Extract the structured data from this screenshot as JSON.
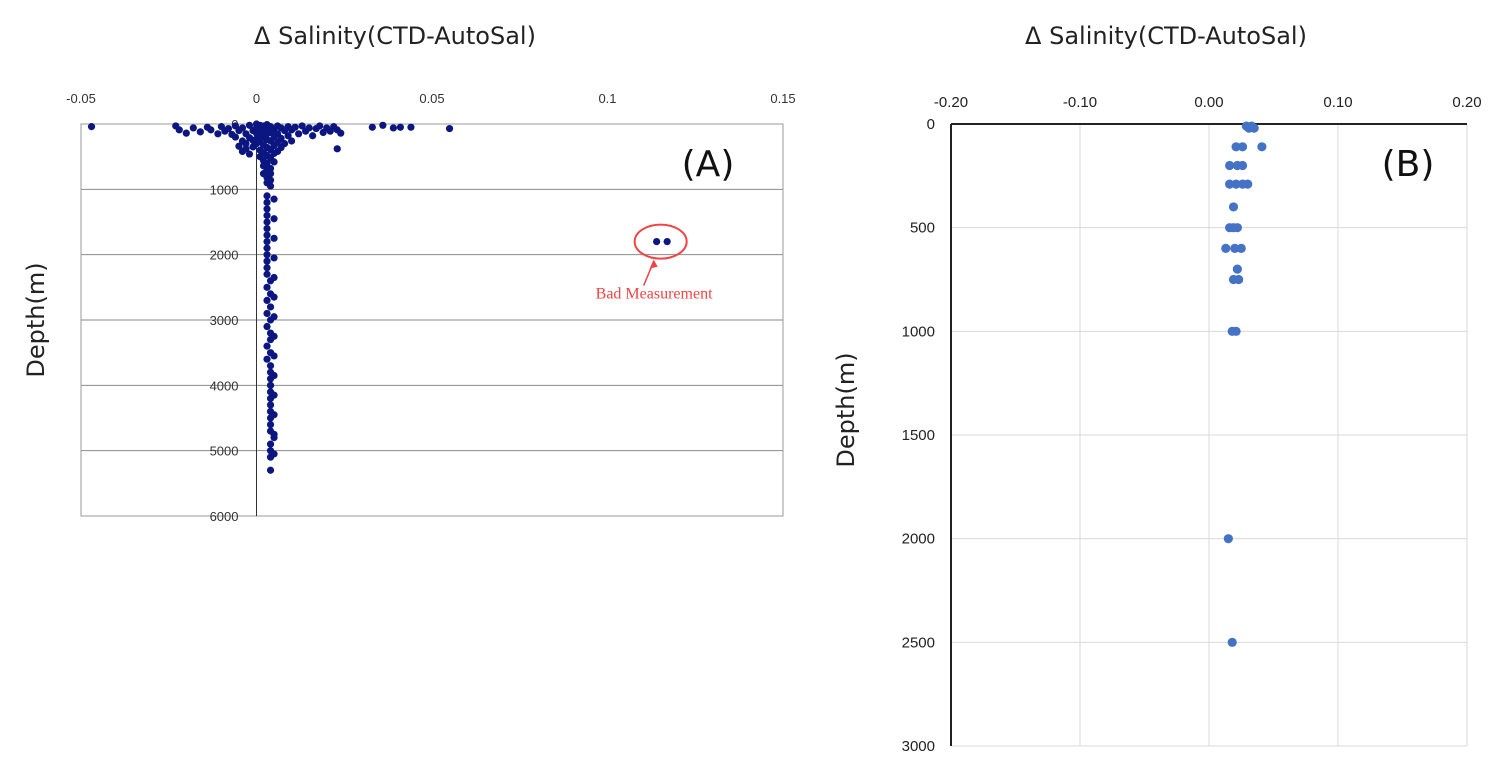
{
  "chart_data": [
    {
      "type": "scatter",
      "panel_label": "(A)",
      "title": "Δ Salinity(CTD-AutoSal)",
      "xlabel": "Δ Salinity(CTD-AutoSal)",
      "ylabel": "Depth(m)",
      "xlim": [
        -0.05,
        0.15
      ],
      "ylim": [
        0,
        6000
      ],
      "y_inverted": true,
      "x_ticks": [
        "-0.05",
        "0",
        "0.05",
        "0.1",
        "0.15"
      ],
      "y_ticks": [
        "0",
        "1000",
        "2000",
        "3000",
        "4000",
        "5000",
        "6000"
      ],
      "grid": "horizontal",
      "marker_color": "#0b1680",
      "annotation": {
        "text": "Bad Measurement",
        "color": "#ee4444",
        "target": [
          0.116,
          1800
        ]
      },
      "points": [
        [
          -0.047,
          40
        ],
        [
          -0.023,
          30
        ],
        [
          -0.022,
          90
        ],
        [
          -0.02,
          140
        ],
        [
          -0.018,
          60
        ],
        [
          -0.016,
          120
        ],
        [
          -0.014,
          50
        ],
        [
          -0.013,
          90
        ],
        [
          -0.011,
          150
        ],
        [
          -0.01,
          40
        ],
        [
          -0.009,
          110
        ],
        [
          -0.008,
          70
        ],
        [
          -0.007,
          160
        ],
        [
          -0.006,
          30
        ],
        [
          -0.006,
          200
        ],
        [
          -0.005,
          100
        ],
        [
          -0.005,
          340
        ],
        [
          -0.004,
          60
        ],
        [
          -0.004,
          260
        ],
        [
          -0.004,
          420
        ],
        [
          -0.003,
          150
        ],
        [
          -0.003,
          300
        ],
        [
          -0.003,
          380
        ],
        [
          -0.002,
          20
        ],
        [
          -0.002,
          210
        ],
        [
          -0.002,
          460
        ],
        [
          -0.001,
          100
        ],
        [
          -0.001,
          250
        ],
        [
          -0.001,
          350
        ],
        [
          0,
          0
        ],
        [
          0,
          60
        ],
        [
          0,
          140
        ],
        [
          0,
          230
        ],
        [
          0,
          300
        ],
        [
          0.001,
          20
        ],
        [
          0.001,
          90
        ],
        [
          0.001,
          180
        ],
        [
          0.001,
          270
        ],
        [
          0.001,
          400
        ],
        [
          0.001,
          500
        ],
        [
          0.002,
          30
        ],
        [
          0.002,
          110
        ],
        [
          0.002,
          200
        ],
        [
          0.002,
          320
        ],
        [
          0.002,
          440
        ],
        [
          0.002,
          560
        ],
        [
          0.002,
          640
        ],
        [
          0.002,
          760
        ],
        [
          0.003,
          10
        ],
        [
          0.003,
          60
        ],
        [
          0.003,
          150
        ],
        [
          0.003,
          240
        ],
        [
          0.003,
          360
        ],
        [
          0.003,
          480
        ],
        [
          0.003,
          600
        ],
        [
          0.003,
          700
        ],
        [
          0.003,
          820
        ],
        [
          0.003,
          900
        ],
        [
          0.004,
          40
        ],
        [
          0.004,
          130
        ],
        [
          0.004,
          260
        ],
        [
          0.004,
          390
        ],
        [
          0.004,
          520
        ],
        [
          0.004,
          680
        ],
        [
          0.004,
          760
        ],
        [
          0.004,
          860
        ],
        [
          0.004,
          950
        ],
        [
          0.005,
          80
        ],
        [
          0.005,
          200
        ],
        [
          0.005,
          330
        ],
        [
          0.005,
          450
        ],
        [
          0.005,
          580
        ],
        [
          0.006,
          30
        ],
        [
          0.006,
          150
        ],
        [
          0.006,
          280
        ],
        [
          0.006,
          420
        ],
        [
          0.007,
          60
        ],
        [
          0.007,
          220
        ],
        [
          0.007,
          360
        ],
        [
          0.008,
          100
        ],
        [
          0.008,
          300
        ],
        [
          0.009,
          40
        ],
        [
          0.009,
          180
        ],
        [
          0.01,
          90
        ],
        [
          0.01,
          260
        ],
        [
          0.011,
          50
        ],
        [
          0.012,
          150
        ],
        [
          0.013,
          30
        ],
        [
          0.014,
          110
        ],
        [
          0.015,
          60
        ],
        [
          0.016,
          180
        ],
        [
          0.017,
          70
        ],
        [
          0.018,
          30
        ],
        [
          0.019,
          130
        ],
        [
          0.02,
          60
        ],
        [
          0.021,
          110
        ],
        [
          0.022,
          40
        ],
        [
          0.023,
          90
        ],
        [
          0.024,
          140
        ],
        [
          0.023,
          380
        ],
        [
          0.033,
          50
        ],
        [
          0.036,
          20
        ],
        [
          0.039,
          60
        ],
        [
          0.041,
          50
        ],
        [
          0.044,
          50
        ],
        [
          0.055,
          70
        ],
        [
          0.003,
          1100
        ],
        [
          0.003,
          1200
        ],
        [
          0.003,
          1300
        ],
        [
          0.003,
          1400
        ],
        [
          0.003,
          1500
        ],
        [
          0.003,
          1600
        ],
        [
          0.003,
          1700
        ],
        [
          0.003,
          1800
        ],
        [
          0.003,
          1900
        ],
        [
          0.003,
          2000
        ],
        [
          0.003,
          2100
        ],
        [
          0.003,
          2200
        ],
        [
          0.003,
          2300
        ],
        [
          0.004,
          2400
        ],
        [
          0.003,
          2500
        ],
        [
          0.004,
          2600
        ],
        [
          0.003,
          2700
        ],
        [
          0.004,
          2800
        ],
        [
          0.003,
          2900
        ],
        [
          0.004,
          3000
        ],
        [
          0.003,
          3100
        ],
        [
          0.004,
          3200
        ],
        [
          0.004,
          3300
        ],
        [
          0.003,
          3400
        ],
        [
          0.004,
          3500
        ],
        [
          0.003,
          3600
        ],
        [
          0.004,
          3700
        ],
        [
          0.004,
          3800
        ],
        [
          0.004,
          3900
        ],
        [
          0.004,
          4000
        ],
        [
          0.004,
          4100
        ],
        [
          0.004,
          4200
        ],
        [
          0.004,
          4300
        ],
        [
          0.004,
          4400
        ],
        [
          0.004,
          4500
        ],
        [
          0.004,
          4600
        ],
        [
          0.004,
          4700
        ],
        [
          0.005,
          4800
        ],
        [
          0.004,
          4900
        ],
        [
          0.004,
          5000
        ],
        [
          0.004,
          5100
        ],
        [
          0.004,
          5300
        ],
        [
          0.005,
          1150
        ],
        [
          0.005,
          1450
        ],
        [
          0.005,
          1750
        ],
        [
          0.005,
          2050
        ],
        [
          0.005,
          2350
        ],
        [
          0.005,
          2650
        ],
        [
          0.005,
          2950
        ],
        [
          0.005,
          3250
        ],
        [
          0.005,
          3550
        ],
        [
          0.005,
          3850
        ],
        [
          0.005,
          4150
        ],
        [
          0.005,
          4450
        ],
        [
          0.005,
          4750
        ],
        [
          0.005,
          5050
        ],
        [
          0.114,
          1800
        ],
        [
          0.117,
          1800
        ]
      ]
    },
    {
      "type": "scatter",
      "panel_label": "(B)",
      "title": "Δ Salinity(CTD-AutoSal)",
      "xlabel": "Δ Salinity(CTD-AutoSal)",
      "ylabel": "Depth(m)",
      "xlim": [
        -0.2,
        0.2
      ],
      "ylim": [
        0,
        3000
      ],
      "y_inverted": true,
      "x_ticks": [
        "-0.20",
        "-0.10",
        "0.00",
        "0.10",
        "0.20"
      ],
      "y_ticks": [
        "0",
        "500",
        "1000",
        "1500",
        "2000",
        "2500",
        "3000"
      ],
      "grid": "both",
      "marker_color": "#4472c4",
      "points": [
        [
          0.029,
          10
        ],
        [
          0.033,
          10
        ],
        [
          0.031,
          20
        ],
        [
          0.035,
          20
        ],
        [
          0.041,
          110
        ],
        [
          0.026,
          110
        ],
        [
          0.021,
          110
        ],
        [
          0.016,
          200
        ],
        [
          0.022,
          200
        ],
        [
          0.026,
          200
        ],
        [
          0.016,
          290
        ],
        [
          0.021,
          290
        ],
        [
          0.026,
          290
        ],
        [
          0.03,
          290
        ],
        [
          0.019,
          400
        ],
        [
          0.016,
          500
        ],
        [
          0.019,
          500
        ],
        [
          0.022,
          500
        ],
        [
          0.013,
          600
        ],
        [
          0.02,
          600
        ],
        [
          0.025,
          600
        ],
        [
          0.022,
          700
        ],
        [
          0.019,
          750
        ],
        [
          0.023,
          750
        ],
        [
          0.018,
          1000
        ],
        [
          0.021,
          1000
        ],
        [
          0.015,
          2000
        ],
        [
          0.018,
          2500
        ]
      ]
    }
  ]
}
